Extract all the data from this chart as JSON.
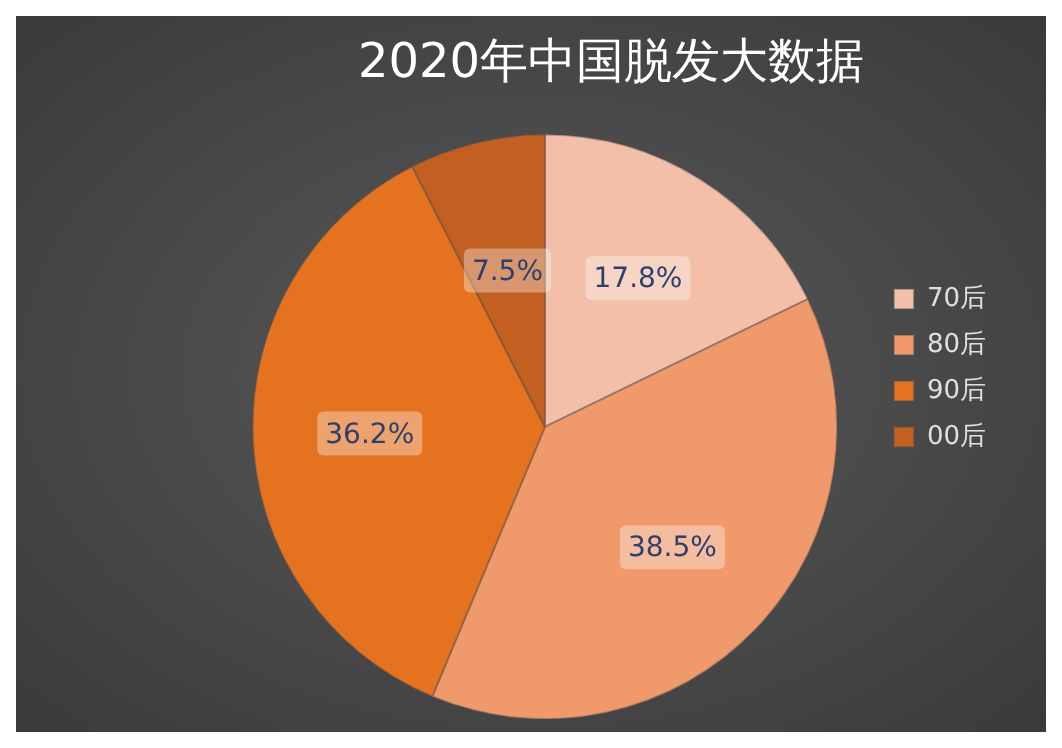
{
  "chart_data": {
    "type": "pie",
    "title": "2020年中国脱发大数据",
    "categories": [
      "70后",
      "80后",
      "90后",
      "00后"
    ],
    "values": [
      17.8,
      38.5,
      36.2,
      7.5
    ],
    "colors": [
      "#f3bfa8",
      "#f09a6c",
      "#e4721f",
      "#c45f22"
    ],
    "value_labels": [
      "17.8%",
      "38.5%",
      "36.2%",
      "7.5%"
    ],
    "legend": "right"
  }
}
